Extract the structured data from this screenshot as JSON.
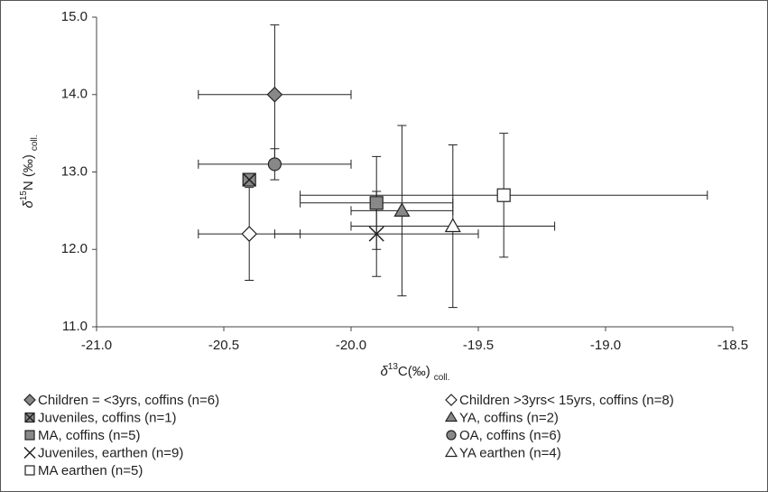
{
  "chart_data": {
    "type": "scatter",
    "x_label": {
      "prefix": "δ",
      "sup": "13",
      "main": "C(‰)",
      "sub": "coll."
    },
    "y_label": {
      "prefix": "δ",
      "sup": "15",
      "main": "N (‰)",
      "sub": "coll."
    },
    "xlim": [
      -21,
      -18.5
    ],
    "xticks": [
      {
        "value": -21,
        "label": "-21.0"
      },
      {
        "value": -20.5,
        "label": "-20.5"
      },
      {
        "value": -20,
        "label": "-20.0"
      },
      {
        "value": -19.5,
        "label": "-19.5"
      },
      {
        "value": -19,
        "label": "-19.0"
      },
      {
        "value": -18.5,
        "label": "-18.5"
      }
    ],
    "ylim": [
      11,
      15
    ],
    "yticks": [
      {
        "value": 11,
        "label": "11.0"
      },
      {
        "value": 12,
        "label": "12.0"
      },
      {
        "value": 13,
        "label": "13.0"
      },
      {
        "value": 14,
        "label": "14.0"
      },
      {
        "value": 15,
        "label": "15.0"
      }
    ],
    "series": [
      {
        "name": "Children = <3yrs, coffins (n=6)",
        "marker": "diamond",
        "color": "#888888",
        "x": [
          -20.3
        ],
        "values": [
          14.0
        ],
        "xerr": [
          0.3
        ],
        "yerr": [
          0.9
        ]
      },
      {
        "name": "Children >3yrs< 15yrs, coffins (n=8)",
        "marker": "diamond",
        "color": "#ffffff",
        "x": [
          -20.4
        ],
        "values": [
          12.2
        ],
        "xerr": [
          0.2
        ],
        "yerr": [
          0.6
        ]
      },
      {
        "name": "Juveniles, coffins (n=1)",
        "marker": "xsquare",
        "color": "#888888",
        "x": [
          -20.4
        ],
        "values": [
          12.9
        ]
      },
      {
        "name": "YA, coffins (n=2)",
        "marker": "triangle",
        "color": "#888888",
        "x": [
          -19.8
        ],
        "values": [
          12.5
        ],
        "xerr": [
          0.2
        ],
        "yerr": [
          1.1
        ]
      },
      {
        "name": "MA, coffins (n=5)",
        "marker": "square",
        "color": "#888888",
        "x": [
          -19.9
        ],
        "values": [
          12.6
        ],
        "xerr": [
          0.3
        ],
        "yerr": [
          0.6
        ]
      },
      {
        "name": "OA, coffins (n=6)",
        "marker": "circle",
        "color": "#888888",
        "x": [
          -20.3
        ],
        "values": [
          13.1
        ],
        "xerr": [
          0.3
        ],
        "yerr": [
          0.2
        ]
      },
      {
        "name": "Juveniles, earthen (n=9)",
        "marker": "cross",
        "color": "#222222",
        "x": [
          -19.9
        ],
        "values": [
          12.2
        ],
        "xerr": [
          0.4
        ],
        "yerr": [
          0.55
        ]
      },
      {
        "name": "YA earthen (n=4)",
        "marker": "triangle",
        "color": "#ffffff",
        "x": [
          -19.6
        ],
        "values": [
          12.3
        ],
        "xerr": [
          0.4
        ],
        "yerr": [
          1.05
        ]
      },
      {
        "name": "MA earthen (n=5)",
        "marker": "square",
        "color": "#ffffff",
        "x": [
          -19.4
        ],
        "values": [
          12.7
        ],
        "xerr": [
          0.8
        ],
        "yerr": [
          0.8
        ]
      }
    ]
  }
}
